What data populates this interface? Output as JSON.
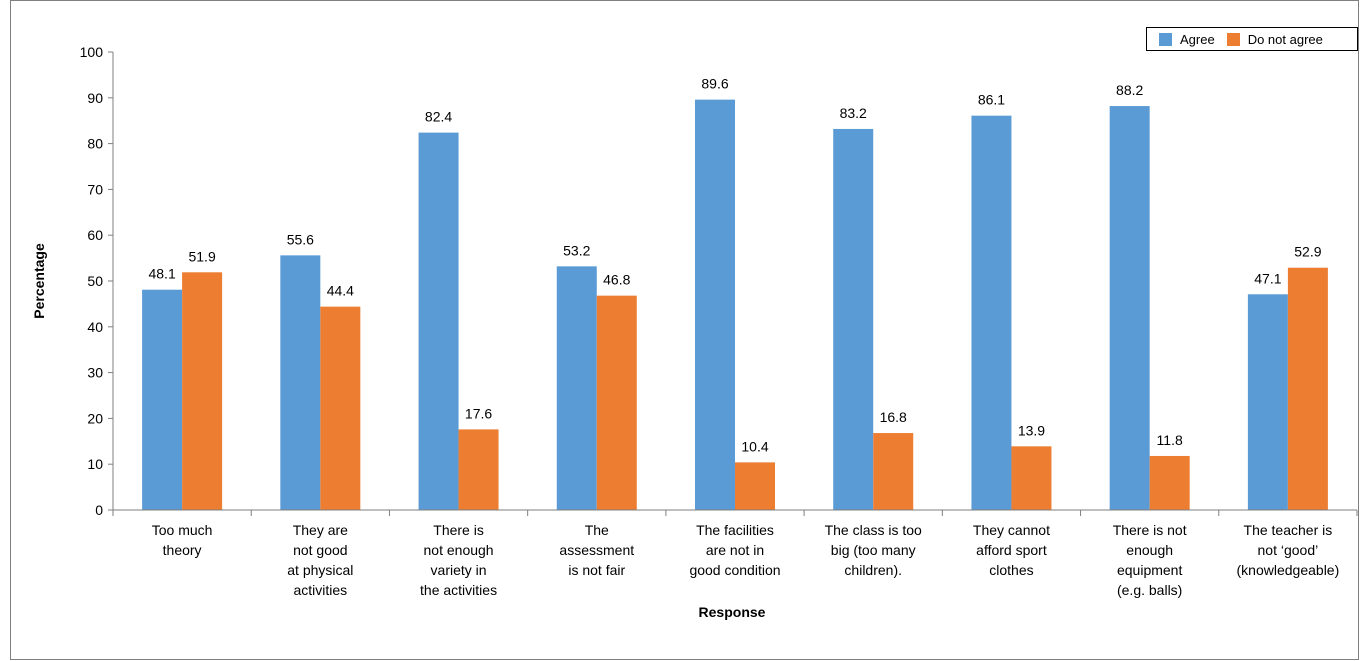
{
  "chart_data": {
    "type": "bar",
    "xlabel": "Response",
    "ylabel": "Percentage",
    "ylim": [
      0,
      100
    ],
    "yticks": [
      0,
      10,
      20,
      30,
      40,
      50,
      60,
      70,
      80,
      90,
      100
    ],
    "grid": false,
    "legend_position": "top-right",
    "categories": [
      [
        "Too much",
        "theory"
      ],
      [
        "They are",
        "not good",
        "at physical",
        "activities"
      ],
      [
        "There is",
        "not enough",
        "variety in",
        "the activities"
      ],
      [
        "The",
        "assessment",
        "is not fair"
      ],
      [
        "The facilities",
        "are not in",
        "good condition"
      ],
      [
        "The class is too",
        "big (too many",
        "children)."
      ],
      [
        "They cannot",
        "afford sport",
        "clothes"
      ],
      [
        "There is not",
        "enough",
        "equipment",
        "(e.g. balls)"
      ],
      [
        "The  teacher is",
        "not ‘good’",
        "(knowledgeable)"
      ]
    ],
    "series": [
      {
        "name": "Agree",
        "color": "#5B9BD5",
        "values": [
          48.1,
          55.6,
          82.4,
          53.2,
          89.6,
          83.2,
          86.1,
          88.2,
          47.1
        ],
        "labels": [
          "48.1",
          "55.6",
          "82.4",
          "53.2",
          "89.6",
          "83.2",
          "86.1",
          "88.2",
          "47.1"
        ]
      },
      {
        "name": "Do not agree",
        "color": "#ED7D31",
        "values": [
          51.9,
          44.4,
          17.6,
          46.8,
          10.4,
          16.8,
          13.9,
          11.8,
          52.9
        ],
        "labels": [
          "51.9",
          "44.4",
          "17.6",
          "46.8",
          "10.4",
          "16.8",
          "13.9",
          "11.8",
          "52.9"
        ]
      }
    ]
  }
}
